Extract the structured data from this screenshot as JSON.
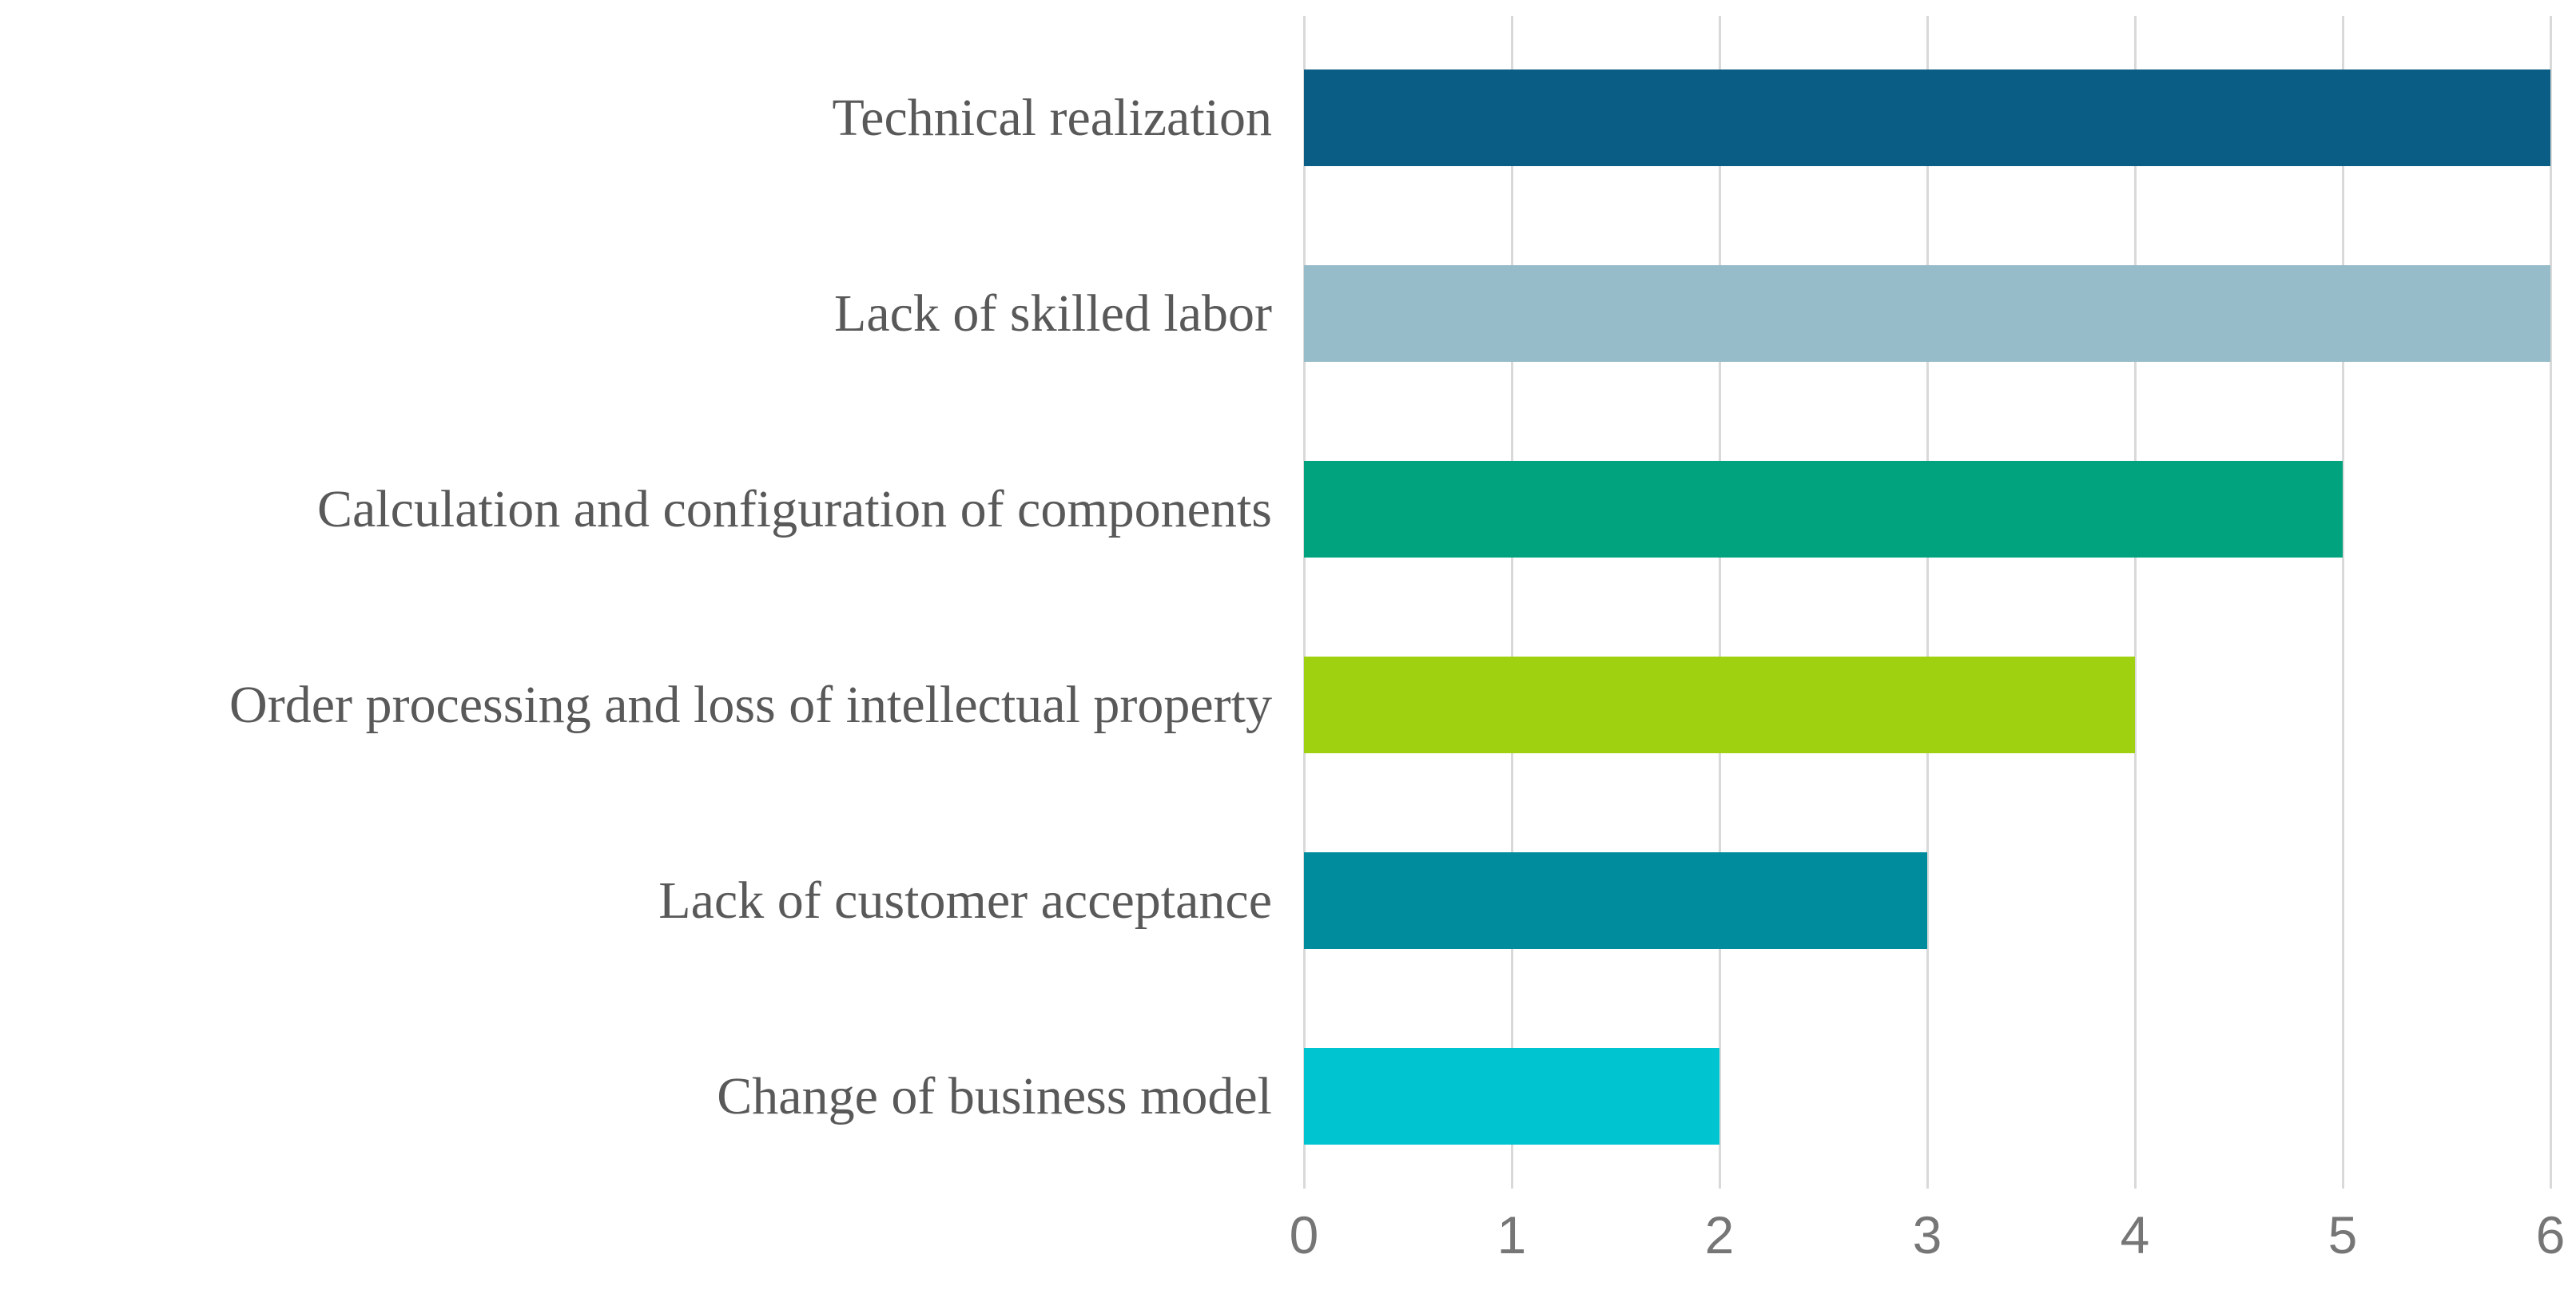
{
  "chart_data": {
    "type": "bar",
    "orientation": "horizontal",
    "title": "",
    "xlabel": "",
    "ylabel": "",
    "categories": [
      "Technical realization",
      "Lack of skilled labor",
      "Calculation and configuration of components",
      "Order processing and loss of intellectual property",
      "Lack of customer acceptance",
      "Change of business model"
    ],
    "values": [
      6,
      6,
      5,
      4,
      3,
      2
    ],
    "bar_colors": [
      "#0a5e86",
      "#96bcc9",
      "#00a37e",
      "#a0d111",
      "#008c9d",
      "#00c4d0"
    ],
    "xlim": [
      0,
      6
    ],
    "x_ticks": [
      "0",
      "1",
      "2",
      "3",
      "4",
      "5",
      "6"
    ],
    "grid": "vertical-gridlines-on",
    "legend": "none",
    "label_color": "#595959",
    "tick_color": "#767676",
    "gridline_color": "#d9d9d9"
  }
}
